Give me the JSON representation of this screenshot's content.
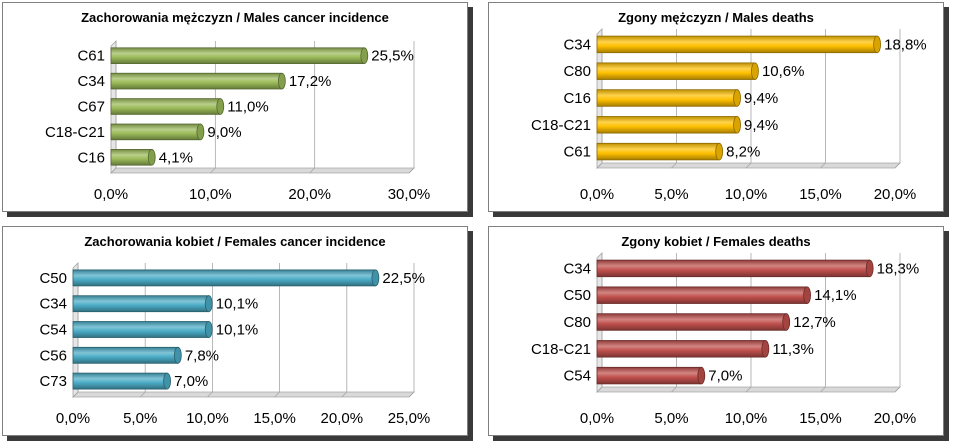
{
  "chart_data": [
    {
      "type": "bar",
      "orientation": "horizontal",
      "title": "Zachorowania mężczyzn / Males cancer incidence",
      "categories": [
        "C61",
        "C34",
        "C67",
        "C18-C21",
        "C16"
      ],
      "values": [
        25.5,
        17.2,
        11.0,
        9.0,
        4.1
      ],
      "data_labels": [
        "25,5%",
        "17,2%",
        "11,0%",
        "9,0%",
        "4,1%"
      ],
      "xlim": [
        0,
        30
      ],
      "ticks": [
        0,
        10,
        20,
        30
      ],
      "tick_labels": [
        "0,0%",
        "10,0%",
        "20,0%",
        "30,0%"
      ],
      "color": "#9bbb59",
      "grid": true
    },
    {
      "type": "bar",
      "orientation": "horizontal",
      "title": "Zgony mężczyzn / Males deaths",
      "categories": [
        "C34",
        "C80",
        "C16",
        "C18-C21",
        "C61"
      ],
      "values": [
        18.8,
        10.6,
        9.4,
        9.4,
        8.2
      ],
      "data_labels": [
        "18,8%",
        "10,6%",
        "9,4%",
        "9,4%",
        "8,2%"
      ],
      "xlim": [
        0,
        20
      ],
      "ticks": [
        0,
        5,
        10,
        15,
        20
      ],
      "tick_labels": [
        "0,0%",
        "5,0%",
        "10,0%",
        "15,0%",
        "20,0%"
      ],
      "color": "#ffc000",
      "grid": true
    },
    {
      "type": "bar",
      "orientation": "horizontal",
      "title": "Zachorowania kobiet / Females cancer incidence",
      "categories": [
        "C50",
        "C34",
        "C54",
        "C56",
        "C73"
      ],
      "values": [
        22.5,
        10.1,
        10.1,
        7.8,
        7.0
      ],
      "data_labels": [
        "22,5%",
        "10,1%",
        "10,1%",
        "7,8%",
        "7,0%"
      ],
      "xlim": [
        0,
        25
      ],
      "ticks": [
        0,
        5,
        10,
        15,
        20,
        25
      ],
      "tick_labels": [
        "0,0%",
        "5,0%",
        "10,0%",
        "15,0%",
        "20,0%",
        "25,0%"
      ],
      "color": "#4bacc6",
      "grid": true
    },
    {
      "type": "bar",
      "orientation": "horizontal",
      "title": "Zgony kobiet / Females deaths",
      "categories": [
        "C34",
        "C50",
        "C80",
        "C18-C21",
        "C54"
      ],
      "values": [
        18.3,
        14.1,
        12.7,
        11.3,
        7.0
      ],
      "data_labels": [
        "18,3%",
        "14,1%",
        "12,7%",
        "11,3%",
        "7,0%"
      ],
      "xlim": [
        0,
        20
      ],
      "ticks": [
        0,
        5,
        10,
        15,
        20
      ],
      "tick_labels": [
        "0,0%",
        "5,0%",
        "10,0%",
        "15,0%",
        "20,0%"
      ],
      "color": "#c0504d",
      "grid": true
    }
  ]
}
